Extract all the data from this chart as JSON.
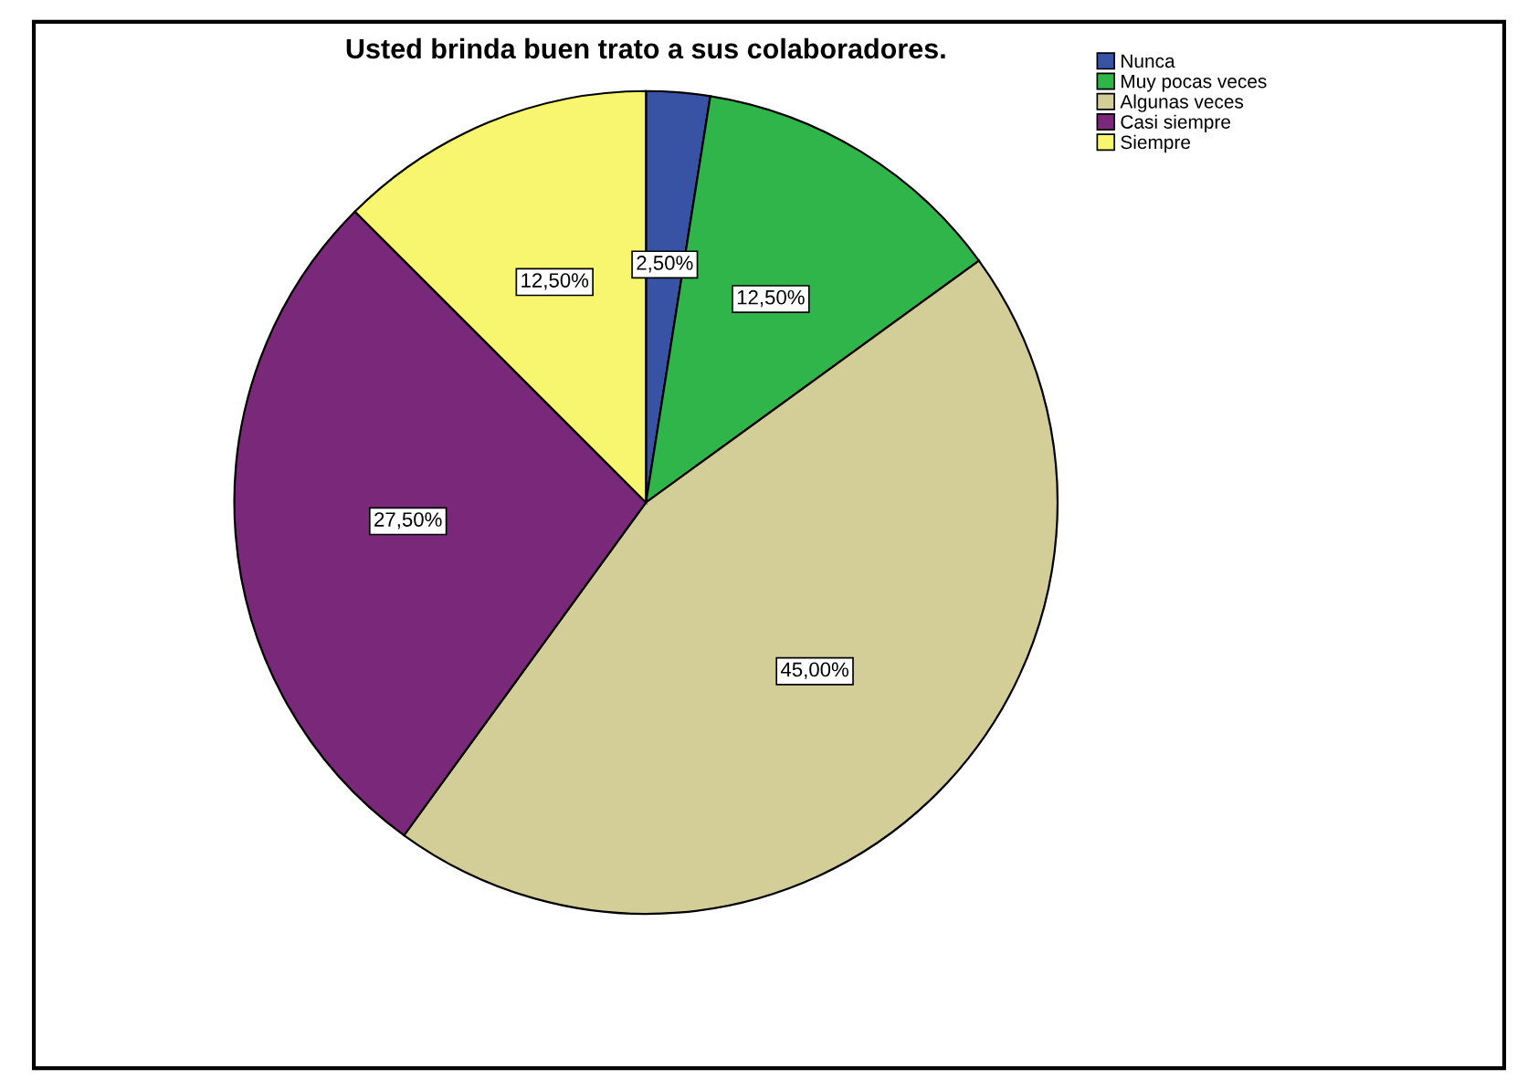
{
  "chart_data": {
    "type": "pie",
    "title": "Usted brinda buen trato a sus colaboradores.",
    "categories": [
      "Nunca",
      "Muy pocas veces",
      "Algunas veces",
      "Casi siempre",
      "Siempre"
    ],
    "values": [
      2.5,
      12.5,
      45,
      27.5,
      12.5
    ],
    "value_labels": [
      "2,50%",
      "12,50%",
      "45,00%",
      "27,50%",
      "12,50%"
    ],
    "colors": [
      "#3953a4",
      "#2fb54a",
      "#d3ce97",
      "#79287a",
      "#f8f56f"
    ],
    "legend": "top right"
  }
}
